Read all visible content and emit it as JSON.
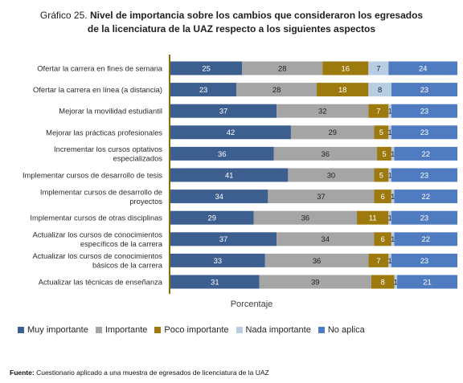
{
  "title": {
    "prefix": "Gráfico 25.",
    "line1": "Nivel de importancia sobre los cambios que consideraron los egresados",
    "line2": "de la licenciatura de la UAZ respecto a los siguientes aspectos"
  },
  "chart_data": {
    "type": "bar",
    "orientation": "horizontal",
    "stacked": true,
    "percent": true,
    "xlabel": "Porcentaje",
    "ylabel": "",
    "categories": [
      "Ofertar la carrera en fines de semana",
      "Ofertar la carrera en línea (a distancia)",
      "Mejorar la movilidad estudiantil",
      "Mejorar las prácticas profesionales",
      "Incrementar los cursos optativos especializados",
      "Implementar cursos de desarrollo de tesis",
      "Implementar cursos de desarrollo de proyectos",
      "Implementar cursos de otras disciplinas",
      "Actualizar los cursos de conocimientos específicos de la carrera",
      "Actualizar los cursos de conocimientos básicos de la carrera",
      "Actualizar las técnicas de enseñanza"
    ],
    "category_lines": [
      [
        "Ofertar la carrera en fines de semana"
      ],
      [
        "Ofertar la carrera en línea (a distancia)"
      ],
      [
        "Mejorar la movilidad estudiantil"
      ],
      [
        "Mejorar las prácticas profesionales"
      ],
      [
        "Incrementar los cursos optativos",
        "especializados"
      ],
      [
        "Implementar cursos de desarrollo de tesis"
      ],
      [
        "Implementar cursos de desarrollo de",
        "proyectos"
      ],
      [
        "Implementar cursos de otras disciplinas"
      ],
      [
        "Actualizar los cursos de conocimientos",
        "específicos de la carrera"
      ],
      [
        "Actualizar los cursos de conocimientos",
        "básicos de la carrera"
      ],
      [
        "Actualizar las técnicas de enseñanza"
      ]
    ],
    "series": [
      {
        "name": "Muy importante",
        "color": "#3c5f8f",
        "label_color": "#ffffff",
        "values": [
          25,
          23,
          37,
          42,
          36,
          41,
          34,
          29,
          37,
          33,
          31
        ]
      },
      {
        "name": "Importante",
        "color": "#a5a5a5",
        "label_color": "#1f1f1f",
        "values": [
          28,
          28,
          32,
          29,
          36,
          30,
          37,
          36,
          34,
          36,
          39
        ]
      },
      {
        "name": "Poco importante",
        "color": "#9c7a0e",
        "label_color": "#ffffff",
        "values": [
          16,
          18,
          7,
          5,
          5,
          5,
          6,
          11,
          6,
          7,
          8
        ]
      },
      {
        "name": "Nada importante",
        "color": "#b8cce4",
        "label_color": "#1f1f1f",
        "values": [
          7,
          8,
          1,
          1,
          1,
          1,
          1,
          1,
          1,
          1,
          1
        ]
      },
      {
        "name": "No aplica",
        "color": "#4f7cc0",
        "label_color": "#ffffff",
        "values": [
          24,
          23,
          23,
          23,
          22,
          23,
          22,
          23,
          22,
          23,
          21
        ]
      }
    ],
    "xlim": [
      0,
      100
    ],
    "grid": false,
    "legend_position": "bottom"
  },
  "source": {
    "label": "Fuente:",
    "text": "Cuestionario aplicado a una muestra de egresados de licenciatura de la UAZ"
  }
}
